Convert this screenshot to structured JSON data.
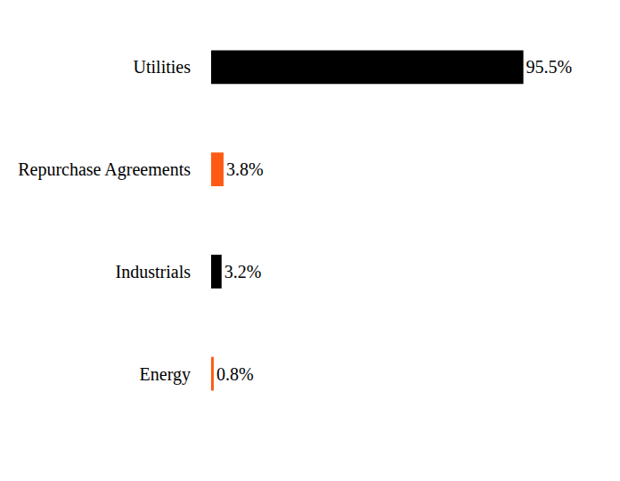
{
  "chart_data": {
    "type": "bar",
    "orientation": "horizontal",
    "categories": [
      "Utilities",
      "Repurchase Agreements",
      "Industrials",
      "Energy"
    ],
    "values": [
      95.5,
      3.8,
      3.2,
      0.8
    ],
    "value_labels": [
      "95.5%",
      "3.8%",
      "3.2%",
      "0.8%"
    ],
    "colors": [
      "#000000",
      "#ff5a14",
      "#000000",
      "#ff5a14"
    ],
    "data_labels": true,
    "tick_labels": "y",
    "grid": false
  }
}
